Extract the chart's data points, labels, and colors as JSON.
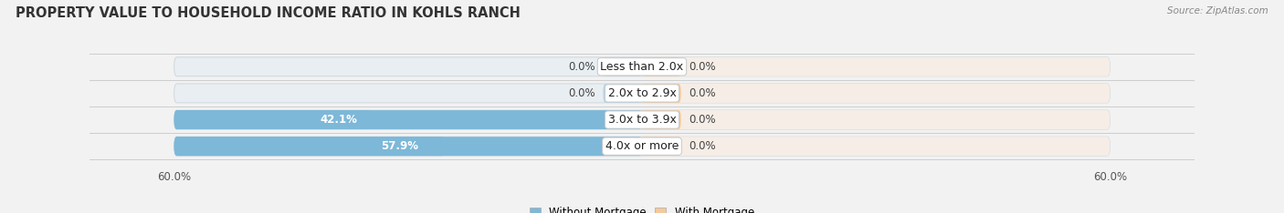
{
  "title": "PROPERTY VALUE TO HOUSEHOLD INCOME RATIO IN KOHLS RANCH",
  "source": "Source: ZipAtlas.com",
  "categories": [
    "Less than 2.0x",
    "2.0x to 2.9x",
    "3.0x to 3.9x",
    "4.0x or more"
  ],
  "without_mortgage": [
    0.0,
    0.0,
    42.1,
    57.9
  ],
  "with_mortgage": [
    0.0,
    0.0,
    0.0,
    0.0
  ],
  "xlim": 60.0,
  "bar_color_blue": "#7db8d8",
  "bar_color_blue_light": "#b8d8ec",
  "bar_color_orange": "#f5c99a",
  "bar_bg_left": "#e8eef2",
  "bar_bg_right": "#f5ede6",
  "bg_color": "#f2f2f2",
  "title_fontsize": 10.5,
  "label_fontsize": 8.5,
  "axis_label_fontsize": 8.5,
  "source_fontsize": 7.5
}
